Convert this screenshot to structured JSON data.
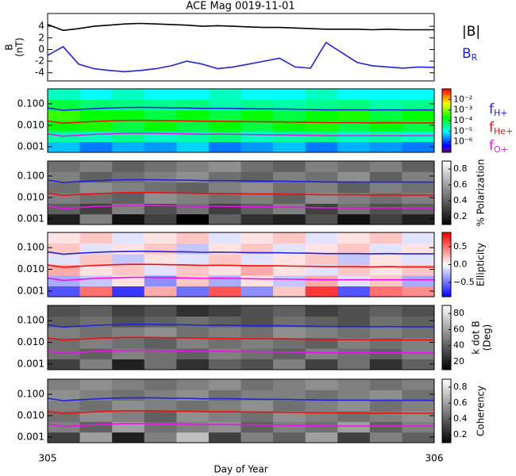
{
  "chart_data": [
    {
      "type": "line",
      "title": "ACE Mag 0019-11-01",
      "ylabel": "B",
      "ylabel2": "(nT)",
      "x": [
        305.0,
        305.04,
        305.08,
        305.12,
        305.16,
        305.2,
        305.24,
        305.28,
        305.32,
        305.36,
        305.4,
        305.44,
        305.48,
        305.52,
        305.56,
        305.6,
        305.64,
        305.68,
        305.72,
        305.76,
        305.8,
        305.84,
        305.88,
        305.92,
        305.96,
        306.0
      ],
      "xlim": [
        305,
        306
      ],
      "xticks": [
        305,
        306
      ],
      "ylim": [
        -5.4,
        6.2
      ],
      "yticks": [
        -4,
        -2,
        0,
        2,
        4
      ],
      "series": [
        {
          "name": "|B|",
          "color": "#000000",
          "values": [
            4.3,
            3.3,
            3.6,
            4.0,
            4.2,
            4.4,
            4.5,
            4.4,
            4.3,
            4.2,
            4.0,
            4.1,
            4.0,
            3.9,
            3.8,
            3.8,
            3.7,
            3.6,
            3.5,
            3.5,
            3.5,
            3.4,
            3.5,
            3.4,
            3.4,
            3.4
          ]
        },
        {
          "name": "B",
          "sub": "R",
          "color": "#2222dd",
          "values": [
            -1.0,
            0.5,
            -2.5,
            -3.3,
            -3.6,
            -3.8,
            -3.6,
            -3.3,
            -2.8,
            -2.0,
            -2.5,
            -3.3,
            -3.0,
            -2.5,
            -2.0,
            -1.5,
            -3.0,
            -3.2,
            1.2,
            -0.5,
            -2.2,
            -2.8,
            -3.0,
            -3.2,
            -3.0,
            -3.1
          ]
        }
      ]
    },
    {
      "type": "heatmap",
      "colormap": "rainbow",
      "clog": true,
      "yscale": "log",
      "ylim": [
        0.00055,
        0.5
      ],
      "yticks": [
        {
          "value": 0.001,
          "label": "0.001"
        },
        {
          "value": 0.01,
          "label": "0.010"
        },
        {
          "value": 0.1,
          "label": "0.100"
        }
      ],
      "clim": [
        1e-07,
        0.1
      ],
      "cticks": [
        {
          "value": 1e-06,
          "label": "10⁻⁶"
        },
        {
          "value": 1e-05,
          "label": "10⁻⁵"
        },
        {
          "value": 0.0001,
          "label": "10⁻⁴"
        },
        {
          "value": 0.001,
          "label": "10⁻³"
        },
        {
          "value": 0.01,
          "label": "10⁻²"
        }
      ],
      "z": [
        [
          5e-06,
          2e-06,
          4e-06,
          3e-06,
          6e-06,
          2e-06,
          3e-06,
          5e-06,
          2e-06,
          4e-06,
          3e-06,
          2e-06
        ],
        [
          3e-05,
          2e-05,
          4e-05,
          2e-05,
          3e-05,
          5e-05,
          2e-05,
          3e-05,
          4e-05,
          2e-05,
          3e-05,
          2e-05
        ],
        [
          0.0002,
          0.0003,
          0.0001,
          0.0002,
          0.0001,
          0.0002,
          0.0001,
          0.0002,
          0.0003,
          0.0001,
          0.0002,
          0.0001
        ],
        [
          0.0004,
          0.0002,
          0.0002,
          0.0001,
          0.0002,
          0.0001,
          0.0002,
          0.0001,
          0.0002,
          0.0003,
          0.0001,
          0.0002
        ],
        [
          0.0001,
          6e-05,
          5e-05,
          4e-05,
          5e-05,
          3e-05,
          4e-05,
          3e-05,
          4e-05,
          5e-05,
          3e-05,
          4e-05
        ],
        [
          2e-05,
          1e-05,
          2e-05,
          1e-05,
          1e-05,
          2e-05,
          1e-05,
          1e-05,
          2e-05,
          1e-05,
          1e-05,
          1e-05
        ]
      ],
      "series": [
        {
          "name": "f",
          "sub": "H+",
          "color": "#2222dd",
          "values": [
            0.064,
            0.05,
            0.055,
            0.06,
            0.064,
            0.067,
            0.068,
            0.067,
            0.065,
            0.064,
            0.061,
            0.062,
            0.061,
            0.059,
            0.058,
            0.058,
            0.056,
            0.055,
            0.053,
            0.053,
            0.053,
            0.052,
            0.053,
            0.052,
            0.052,
            0.052
          ]
        },
        {
          "name": "f",
          "sub": "He+",
          "color": "#ee1111",
          "values": [
            0.016,
            0.0125,
            0.0138,
            0.015,
            0.016,
            0.0168,
            0.017,
            0.0168,
            0.0163,
            0.016,
            0.0153,
            0.0155,
            0.0153,
            0.0148,
            0.0145,
            0.0145,
            0.014,
            0.0138,
            0.0133,
            0.0133,
            0.0133,
            0.013,
            0.0133,
            0.013,
            0.013,
            0.013
          ]
        },
        {
          "name": "f",
          "sub": "O+",
          "color": "#ee11ee",
          "values": [
            0.004,
            0.0031,
            0.0034,
            0.0038,
            0.004,
            0.0042,
            0.0043,
            0.0042,
            0.0041,
            0.004,
            0.0038,
            0.0039,
            0.0038,
            0.0037,
            0.0036,
            0.0036,
            0.0035,
            0.0034,
            0.0033,
            0.0033,
            0.0033,
            0.0033,
            0.0033,
            0.0033,
            0.0033,
            0.0033
          ]
        }
      ]
    },
    {
      "type": "heatmap",
      "colormap": "gray",
      "clabel": "% Polarization",
      "yscale": "log",
      "ylim": [
        0.00055,
        0.5
      ],
      "yticks": [
        {
          "value": 0.001,
          "label": "0.001"
        },
        {
          "value": 0.01,
          "label": "0.010"
        },
        {
          "value": 0.1,
          "label": "0.100"
        }
      ],
      "clim": [
        0.1,
        0.9
      ],
      "cticks": [
        0.2,
        0.4,
        0.6,
        0.8
      ],
      "z": [
        [
          0.2,
          0.5,
          0.15,
          0.3,
          0.1,
          0.4,
          0.25,
          0.2,
          0.35,
          0.15,
          0.3,
          0.2
        ],
        [
          0.4,
          0.3,
          0.5,
          0.35,
          0.45,
          0.3,
          0.4,
          0.5,
          0.3,
          0.45,
          0.35,
          0.4
        ],
        [
          0.5,
          0.45,
          0.4,
          0.55,
          0.5,
          0.45,
          0.5,
          0.4,
          0.55,
          0.5,
          0.45,
          0.5
        ],
        [
          0.45,
          0.55,
          0.5,
          0.45,
          0.4,
          0.5,
          0.55,
          0.45,
          0.5,
          0.4,
          0.5,
          0.45
        ],
        [
          0.5,
          0.4,
          0.45,
          0.5,
          0.55,
          0.45,
          0.4,
          0.5,
          0.45,
          0.55,
          0.4,
          0.5
        ],
        [
          0.45,
          0.5,
          0.4,
          0.45,
          0.5,
          0.55,
          0.45,
          0.4,
          0.5,
          0.45,
          0.5,
          0.4
        ]
      ]
    },
    {
      "type": "heatmap",
      "colormap": "bwr",
      "clabel": "Ellipticity",
      "yscale": "log",
      "ylim": [
        0.00055,
        0.5
      ],
      "yticks": [
        {
          "value": 0.001,
          "label": "0.001"
        },
        {
          "value": 0.01,
          "label": "0.010"
        },
        {
          "value": 0.1,
          "label": "0.100"
        }
      ],
      "clim": [
        -0.9,
        0.9
      ],
      "cticks": [
        {
          "value": -0.5,
          "label": "−0.5"
        },
        {
          "value": 0,
          "label": "0.0"
        },
        0.5
      ],
      "z": [
        [
          -0.6,
          0.5,
          -0.7,
          0.3,
          -0.5,
          0.6,
          -0.4,
          0.2,
          0.7,
          -0.6,
          0.5,
          0.4
        ],
        [
          -0.3,
          -0.2,
          0.1,
          -0.4,
          0.2,
          -0.3,
          0.1,
          -0.2,
          0.3,
          -0.1,
          0.2,
          -0.3
        ],
        [
          0.3,
          0.1,
          0.2,
          -0.1,
          0.2,
          0.1,
          0.3,
          0.1,
          -0.1,
          0.2,
          0.1,
          0.2
        ],
        [
          -0.1,
          0.2,
          -0.2,
          0.1,
          -0.1,
          0.2,
          -0.1,
          0.1,
          0.2,
          -0.2,
          0.1,
          -0.1
        ],
        [
          0.2,
          -0.1,
          0.1,
          0.2,
          -0.2,
          0.1,
          0.2,
          -0.1,
          0.1,
          0.2,
          -0.1,
          0.1
        ],
        [
          0.1,
          0.2,
          -0.1,
          0.1,
          0.2,
          -0.1,
          0.1,
          0.2,
          -0.1,
          0.1,
          0.2,
          -0.1
        ]
      ]
    },
    {
      "type": "heatmap",
      "colormap": "gray",
      "clabel": "k dot B",
      "clabel2": "(Deg)",
      "yscale": "log",
      "ylim": [
        0.00055,
        0.5
      ],
      "yticks": [
        {
          "value": 0.001,
          "label": "0.001"
        },
        {
          "value": 0.01,
          "label": "0.010"
        },
        {
          "value": 0.1,
          "label": "0.100"
        }
      ],
      "clim": [
        10,
        90
      ],
      "cticks": [
        20,
        40,
        60,
        80
      ],
      "z": [
        [
          30,
          50,
          20,
          45,
          25,
          40,
          35,
          50,
          30,
          45,
          25,
          40
        ],
        [
          45,
          40,
          50,
          45,
          40,
          50,
          45,
          40,
          50,
          45,
          40,
          50
        ],
        [
          45,
          50,
          45,
          40,
          50,
          45,
          50,
          45,
          40,
          50,
          45,
          50
        ],
        [
          50,
          45,
          50,
          55,
          45,
          50,
          45,
          55,
          50,
          45,
          50,
          45
        ],
        [
          40,
          45,
          35,
          40,
          45,
          40,
          35,
          45,
          40,
          35,
          45,
          40
        ],
        [
          35,
          40,
          30,
          35,
          25,
          30,
          35,
          40,
          30,
          35,
          40,
          35
        ]
      ]
    },
    {
      "type": "heatmap",
      "colormap": "gray",
      "clabel": "Coherency",
      "yscale": "log",
      "xlabel": "Day of Year",
      "ylim": [
        0.00055,
        0.5
      ],
      "yticks": [
        {
          "value": 0.001,
          "label": "0.001"
        },
        {
          "value": 0.01,
          "label": "0.010"
        },
        {
          "value": 0.1,
          "label": "0.100"
        }
      ],
      "clim": [
        0.1,
        0.9
      ],
      "cticks": [
        0.2,
        0.4,
        0.6,
        0.8
      ],
      "z": [
        [
          0.3,
          0.6,
          0.2,
          0.5,
          0.7,
          0.3,
          0.5,
          0.4,
          0.6,
          0.3,
          0.5,
          0.4
        ],
        [
          0.5,
          0.4,
          0.6,
          0.45,
          0.5,
          0.55,
          0.4,
          0.5,
          0.45,
          0.6,
          0.4,
          0.5
        ],
        [
          0.45,
          0.55,
          0.5,
          0.4,
          0.55,
          0.5,
          0.45,
          0.55,
          0.5,
          0.45,
          0.5,
          0.55
        ],
        [
          0.5,
          0.45,
          0.55,
          0.5,
          0.45,
          0.5,
          0.55,
          0.45,
          0.5,
          0.55,
          0.45,
          0.5
        ],
        [
          0.55,
          0.5,
          0.45,
          0.5,
          0.55,
          0.45,
          0.5,
          0.5,
          0.45,
          0.5,
          0.55,
          0.45
        ],
        [
          0.5,
          0.55,
          0.5,
          0.45,
          0.5,
          0.55,
          0.45,
          0.5,
          0.55,
          0.5,
          0.45,
          0.5
        ]
      ]
    }
  ]
}
